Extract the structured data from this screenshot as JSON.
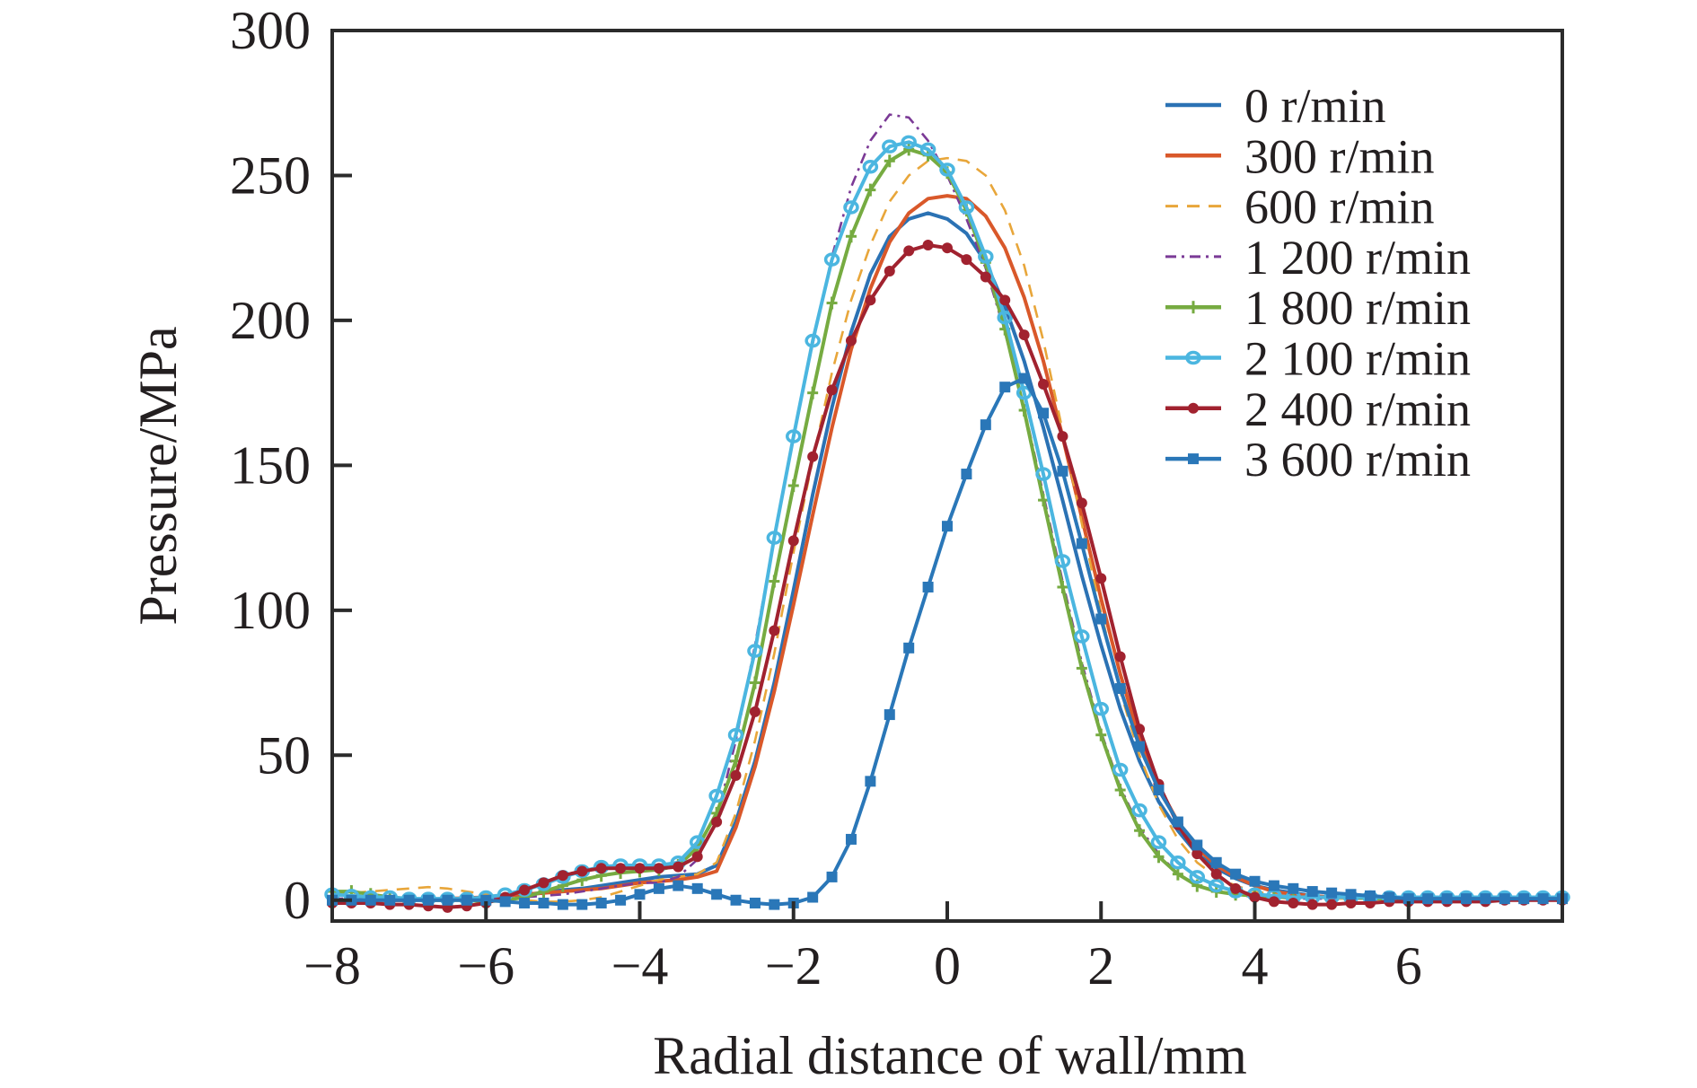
{
  "chart_data": {
    "type": "line",
    "title": "",
    "xlabel": "Radial distance of wall/mm",
    "ylabel": "Pressure/MPa",
    "xlim": [
      -8,
      8
    ],
    "ylim": [
      -7,
      300
    ],
    "xticks": [
      -8,
      -6,
      -4,
      -2,
      0,
      2,
      4,
      6
    ],
    "xtick_labels": [
      "−8",
      "−6",
      "−4",
      "−2",
      "0",
      "2",
      "4",
      "6"
    ],
    "yticks": [
      0,
      50,
      100,
      150,
      200,
      250,
      300
    ],
    "ytick_labels": [
      "0",
      "50",
      "100",
      "150",
      "200",
      "250",
      "300"
    ],
    "grid": false,
    "legend_position": "top-right",
    "x": [
      -8,
      -7.75,
      -7.5,
      -7.25,
      -7,
      -6.75,
      -6.5,
      -6.25,
      -6,
      -5.75,
      -5.5,
      -5.25,
      -5,
      -4.75,
      -4.5,
      -4.25,
      -4,
      -3.75,
      -3.5,
      -3.25,
      -3,
      -2.75,
      -2.5,
      -2.25,
      -2,
      -1.75,
      -1.5,
      -1.25,
      -1,
      -0.75,
      -0.5,
      -0.25,
      0,
      0.25,
      0.5,
      0.75,
      1,
      1.25,
      1.5,
      1.75,
      2,
      2.25,
      2.5,
      2.75,
      3,
      3.25,
      3.5,
      3.75,
      4,
      4.25,
      4.5,
      4.75,
      5,
      5.25,
      5.5,
      5.75,
      6,
      6.25,
      6.5,
      6.75,
      7,
      7.25,
      7.5,
      7.75,
      8
    ],
    "series": [
      {
        "name": "0 r/min",
        "color": "#2b72b4",
        "style": "solid",
        "marker": "none",
        "values": [
          0,
          0,
          0,
          0,
          0,
          0,
          0,
          0.5,
          1,
          1.5,
          2,
          2.5,
          3.5,
          4,
          5,
          6,
          7,
          8,
          8.5,
          9,
          12,
          27,
          48,
          75,
          107,
          140,
          170,
          196,
          216,
          229,
          235,
          237,
          235,
          230,
          220,
          205,
          186,
          163,
          138,
          112,
          88,
          66,
          48,
          34,
          24,
          16,
          11,
          7.5,
          5,
          3.5,
          2.5,
          1.5,
          1,
          1,
          1,
          1,
          0.5,
          0.5,
          0.5,
          0.5,
          0.5,
          0.5,
          0.5,
          0.5,
          0.5
        ]
      },
      {
        "name": "300 r/min",
        "color": "#d9582a",
        "style": "solid",
        "marker": "none",
        "values": [
          0,
          0,
          0,
          0,
          0,
          0.3,
          0.5,
          0.8,
          1,
          1.5,
          2,
          2.5,
          3,
          3.5,
          4,
          5,
          6,
          6.5,
          7,
          8,
          10,
          25,
          46,
          72,
          102,
          133,
          163,
          190,
          211,
          227,
          237,
          242,
          243,
          242,
          236,
          225,
          208,
          186,
          160,
          132,
          104,
          78,
          56,
          39,
          27,
          18,
          12,
          8,
          5,
          3,
          2,
          1.5,
          1,
          1,
          1,
          0.5,
          0.5,
          0.5,
          0.5,
          0.5,
          0.5,
          0.5,
          0.5,
          0.5,
          0.5
        ]
      },
      {
        "name": "600 r/min",
        "color": "#e8a63a",
        "style": "dashed",
        "marker": "none",
        "values": [
          2,
          2.5,
          3,
          3.5,
          4,
          4.5,
          4,
          3,
          2,
          1,
          0,
          -0.5,
          -0.5,
          0,
          1,
          3,
          5,
          7,
          8,
          9,
          13,
          30,
          55,
          85,
          120,
          152,
          182,
          207,
          226,
          241,
          250,
          255,
          256,
          255,
          250,
          238,
          219,
          193,
          162,
          130,
          99,
          72,
          50,
          33,
          21,
          13,
          8,
          5,
          3,
          2,
          1,
          1,
          0.5,
          0.5,
          0.5,
          0.5,
          0.5,
          0.5,
          0.5,
          0.5,
          0.5,
          0.5,
          0.5,
          0.5,
          0.5
        ]
      },
      {
        "name": "1 200 r/min",
        "color": "#7b3a96",
        "style": "dashdot",
        "marker": "none",
        "values": [
          0.5,
          0.5,
          0.5,
          0.5,
          0.5,
          0.5,
          0.5,
          0.5,
          0.5,
          0.8,
          1,
          1.5,
          2,
          3,
          4,
          5,
          6,
          6,
          8,
          14,
          28,
          55,
          88,
          125,
          160,
          192,
          222,
          246,
          262,
          271,
          270,
          262,
          250,
          235,
          218,
          196,
          170,
          140,
          110,
          82,
          58,
          39,
          25,
          16,
          9,
          5,
          3,
          2,
          1,
          1,
          0.5,
          0.5,
          0.5,
          0.5,
          0.5,
          0.5,
          0.5,
          0.5,
          0.5,
          0.5,
          0.5,
          0.5,
          0.5,
          0.5,
          0.5
        ]
      },
      {
        "name": "1 800 r/min",
        "color": "#76ab41",
        "style": "solid",
        "marker": "plus",
        "values": [
          3,
          3,
          2,
          1,
          0.5,
          0,
          0,
          0,
          -0.5,
          0,
          1,
          3,
          5,
          7,
          8.5,
          9.5,
          10,
          10.5,
          12,
          18,
          30,
          48,
          75,
          110,
          143,
          175,
          206,
          229,
          245,
          255,
          259,
          257,
          251,
          238,
          220,
          197,
          169,
          138,
          108,
          80,
          57,
          38,
          24,
          15,
          9,
          5,
          3,
          2,
          1.5,
          1,
          1,
          1,
          1,
          1,
          0.5,
          0.5,
          0.5,
          0.5,
          0.5,
          0.5,
          0.5,
          0.5,
          0.5,
          0.5,
          0.5
        ]
      },
      {
        "name": "2 100 r/min",
        "color": "#4bb6e0",
        "style": "solid",
        "marker": "circle",
        "values": [
          2,
          1.5,
          1,
          1,
          0.5,
          0.5,
          0.5,
          0.5,
          1,
          2,
          3.5,
          5.5,
          8,
          10,
          11.5,
          12,
          12,
          12,
          13,
          20,
          36,
          57,
          86,
          125,
          160,
          193,
          221,
          239,
          253,
          260,
          261.5,
          259,
          252,
          239,
          222,
          201,
          175,
          147,
          117,
          91,
          66,
          45,
          31,
          20,
          13,
          8,
          5,
          3,
          2,
          1.5,
          1,
          1,
          1,
          1,
          1,
          1,
          1,
          1,
          1,
          1,
          1,
          1,
          1,
          1,
          1
        ]
      },
      {
        "name": "2 400 r/min",
        "color": "#a1222f",
        "style": "solid",
        "marker": "dot",
        "values": [
          -1,
          -1,
          -1,
          -1.5,
          -1.5,
          -2,
          -2.5,
          -2,
          -1,
          1,
          3.5,
          6,
          8.5,
          10,
          11,
          11,
          11,
          11,
          11.5,
          15,
          27,
          43,
          65,
          93,
          124,
          153,
          176,
          193,
          207,
          217,
          224,
          226,
          225,
          221,
          215,
          207,
          195,
          178,
          160,
          137,
          111,
          84,
          59,
          40,
          26,
          16,
          9,
          4,
          1,
          -0.5,
          -1,
          -1.5,
          -1.5,
          -1,
          -1,
          -0.5,
          -0.5,
          -0.5,
          -0.5,
          -0.5,
          -0.5,
          0,
          0,
          0,
          0
        ]
      },
      {
        "name": "3 600 r/min",
        "color": "#2a77b8",
        "style": "solid",
        "marker": "square",
        "values": [
          0,
          0,
          0,
          0,
          0,
          0,
          0,
          0,
          0,
          -0.5,
          -1,
          -1,
          -1.5,
          -1.5,
          -1,
          0,
          2,
          4,
          5,
          4,
          2,
          0,
          -1,
          -1.5,
          -1,
          1,
          8,
          21,
          41,
          64,
          87,
          108,
          129,
          147,
          164,
          177,
          180,
          168,
          148,
          123,
          97,
          73,
          53,
          38,
          27,
          19,
          13,
          9,
          6.5,
          5,
          4,
          3,
          2.5,
          2,
          1.5,
          1,
          0.5,
          0.5,
          0.5,
          0.5,
          0.5,
          0.5,
          0.5,
          0.5,
          0.5
        ]
      }
    ]
  }
}
